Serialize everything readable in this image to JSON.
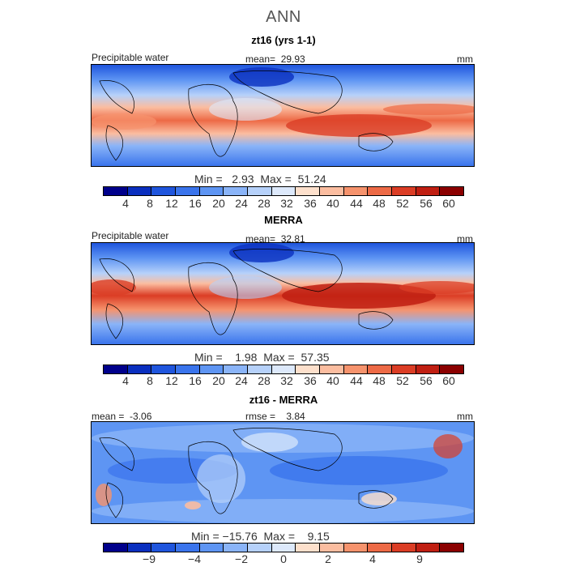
{
  "title": "ANN",
  "colors": [
    "#00008b",
    "#0a2fbf",
    "#1f55dd",
    "#3a74ec",
    "#5e95f3",
    "#8ab4f8",
    "#b6d1fa",
    "#dde9fb",
    "#fde0cc",
    "#fbbda0",
    "#f6936d",
    "#ed6a46",
    "#db3d25",
    "#c01f12",
    "#8b0000"
  ],
  "panels": [
    {
      "title": "zt16 (yrs 1-1)",
      "field": "Precipitable water",
      "mean_label": "mean=",
      "mean": "29.93",
      "units": "mm",
      "min_label": "Min =",
      "min": "2.93",
      "max_label": "Max =",
      "max": "51.24",
      "ticks": [
        "4",
        "8",
        "12",
        "16",
        "20",
        "24",
        "28",
        "32",
        "36",
        "40",
        "44",
        "48",
        "52",
        "56",
        "60"
      ]
    },
    {
      "title": "MERRA",
      "field": "Precipitable water",
      "mean_label": "mean=",
      "mean": "32.81",
      "units": "mm",
      "min_label": "Min =",
      "min": "1.98",
      "max_label": "Max =",
      "max": "57.35",
      "ticks": [
        "4",
        "8",
        "12",
        "16",
        "20",
        "24",
        "28",
        "32",
        "36",
        "40",
        "44",
        "48",
        "52",
        "56",
        "60"
      ]
    },
    {
      "title": "zt16 - MERRA",
      "mean_label": "mean =",
      "mean": "-3.06",
      "rmse_label": "rmse =",
      "rmse": "3.84",
      "units": "mm",
      "min_label": "Min =",
      "min": "−15.76",
      "max_label": "Max =",
      "max": "9.15",
      "ticks": [
        "−9",
        "−4",
        "−2",
        "0",
        "2",
        "4",
        "9"
      ]
    }
  ]
}
